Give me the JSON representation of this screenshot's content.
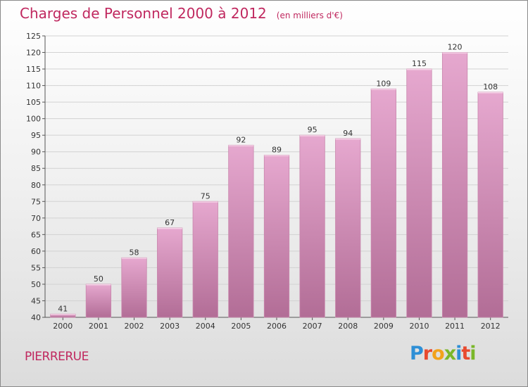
{
  "title": "Charges de Personnel 2000 à 2012",
  "subtitle": "(en milliers d'€)",
  "commune": "PIERRERUE",
  "logo": {
    "letters": [
      {
        "ch": "P",
        "color": "#2e8fd6"
      },
      {
        "ch": "r",
        "color": "#e84a2f"
      },
      {
        "ch": "o",
        "color": "#f2a21b"
      },
      {
        "ch": "x",
        "color": "#7ab729"
      },
      {
        "ch": "i",
        "color": "#2e8fd6"
      },
      {
        "ch": "t",
        "color": "#e84a2f"
      },
      {
        "ch": "i",
        "color": "#7ab729"
      }
    ]
  },
  "colors": {
    "accent": "#c0285f",
    "bar_light": "#e6a8cf",
    "bar_dark": "#b26d96",
    "grid": "#d2d2d2"
  },
  "chart_data": {
    "type": "bar",
    "categories": [
      "2000",
      "2001",
      "2002",
      "2003",
      "2004",
      "2005",
      "2006",
      "2007",
      "2008",
      "2009",
      "2010",
      "2011",
      "2012"
    ],
    "values": [
      41,
      50,
      58,
      67,
      75,
      92,
      89,
      95,
      94,
      109,
      115,
      120,
      108
    ],
    "ylim": [
      40,
      125
    ],
    "yticks": [
      40,
      45,
      50,
      55,
      60,
      65,
      70,
      75,
      80,
      85,
      90,
      95,
      100,
      105,
      110,
      115,
      120,
      125
    ],
    "grid": true,
    "data_labels": true
  }
}
